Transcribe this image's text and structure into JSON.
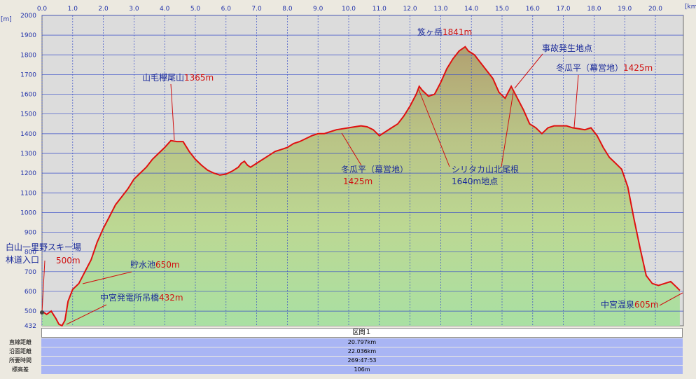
{
  "chart_data": {
    "type": "area",
    "x_unit": "[km]",
    "y_unit": "[m]",
    "xlim": [
      0,
      20.797
    ],
    "ylim": [
      432,
      2000
    ],
    "x_ticks": [
      "0.0",
      "1.0",
      "2.0",
      "3.0",
      "4.0",
      "5.0",
      "6.0",
      "7.0",
      "8.0",
      "9.0",
      "10.0",
      "11.0",
      "12.0",
      "13.0",
      "14.0",
      "15.0",
      "16.0",
      "17.0",
      "18.0",
      "19.0",
      "20.0"
    ],
    "y_ticks": [
      "2000",
      "1900",
      "1800",
      "1700",
      "1600",
      "1500",
      "1400",
      "1300",
      "1200",
      "1100",
      "1000",
      "900",
      "800",
      "700",
      "600",
      "500",
      "432"
    ],
    "grid": true,
    "line_color": "#e01010",
    "profile": [
      [
        0.0,
        500
      ],
      [
        0.15,
        490
      ],
      [
        0.3,
        500
      ],
      [
        0.45,
        470
      ],
      [
        0.55,
        440
      ],
      [
        0.65,
        432
      ],
      [
        0.75,
        460
      ],
      [
        0.85,
        550
      ],
      [
        1.0,
        610
      ],
      [
        1.2,
        640
      ],
      [
        1.4,
        700
      ],
      [
        1.6,
        760
      ],
      [
        1.8,
        850
      ],
      [
        2.0,
        920
      ],
      [
        2.2,
        980
      ],
      [
        2.4,
        1040
      ],
      [
        2.6,
        1080
      ],
      [
        2.8,
        1120
      ],
      [
        3.0,
        1170
      ],
      [
        3.2,
        1200
      ],
      [
        3.4,
        1230
      ],
      [
        3.6,
        1270
      ],
      [
        3.8,
        1300
      ],
      [
        4.0,
        1330
      ],
      [
        4.2,
        1365
      ],
      [
        4.4,
        1360
      ],
      [
        4.6,
        1360
      ],
      [
        4.8,
        1310
      ],
      [
        5.0,
        1270
      ],
      [
        5.2,
        1240
      ],
      [
        5.4,
        1215
      ],
      [
        5.6,
        1200
      ],
      [
        5.8,
        1190
      ],
      [
        6.0,
        1195
      ],
      [
        6.2,
        1210
      ],
      [
        6.4,
        1230
      ],
      [
        6.5,
        1250
      ],
      [
        6.6,
        1260
      ],
      [
        6.7,
        1240
      ],
      [
        6.8,
        1230
      ],
      [
        7.0,
        1250
      ],
      [
        7.2,
        1270
      ],
      [
        7.4,
        1290
      ],
      [
        7.6,
        1310
      ],
      [
        7.8,
        1320
      ],
      [
        8.0,
        1330
      ],
      [
        8.2,
        1350
      ],
      [
        8.4,
        1360
      ],
      [
        8.6,
        1375
      ],
      [
        8.8,
        1390
      ],
      [
        9.0,
        1400
      ],
      [
        9.2,
        1400
      ],
      [
        9.4,
        1410
      ],
      [
        9.6,
        1420
      ],
      [
        9.8,
        1425
      ],
      [
        10.0,
        1430
      ],
      [
        10.2,
        1435
      ],
      [
        10.4,
        1440
      ],
      [
        10.6,
        1435
      ],
      [
        10.8,
        1420
      ],
      [
        11.0,
        1390
      ],
      [
        11.2,
        1410
      ],
      [
        11.4,
        1430
      ],
      [
        11.6,
        1450
      ],
      [
        11.8,
        1490
      ],
      [
        12.0,
        1540
      ],
      [
        12.2,
        1600
      ],
      [
        12.3,
        1640
      ],
      [
        12.4,
        1620
      ],
      [
        12.6,
        1590
      ],
      [
        12.8,
        1600
      ],
      [
        13.0,
        1660
      ],
      [
        13.2,
        1730
      ],
      [
        13.4,
        1780
      ],
      [
        13.6,
        1820
      ],
      [
        13.8,
        1841
      ],
      [
        13.9,
        1820
      ],
      [
        14.1,
        1800
      ],
      [
        14.3,
        1760
      ],
      [
        14.5,
        1720
      ],
      [
        14.7,
        1680
      ],
      [
        14.9,
        1610
      ],
      [
        15.1,
        1580
      ],
      [
        15.3,
        1640
      ],
      [
        15.5,
        1580
      ],
      [
        15.7,
        1520
      ],
      [
        15.9,
        1450
      ],
      [
        16.1,
        1430
      ],
      [
        16.3,
        1400
      ],
      [
        16.5,
        1430
      ],
      [
        16.7,
        1440
      ],
      [
        16.9,
        1440
      ],
      [
        17.1,
        1440
      ],
      [
        17.3,
        1430
      ],
      [
        17.5,
        1425
      ],
      [
        17.7,
        1420
      ],
      [
        17.9,
        1430
      ],
      [
        18.1,
        1390
      ],
      [
        18.3,
        1330
      ],
      [
        18.5,
        1280
      ],
      [
        18.7,
        1250
      ],
      [
        18.9,
        1220
      ],
      [
        19.1,
        1130
      ],
      [
        19.3,
        970
      ],
      [
        19.5,
        820
      ],
      [
        19.7,
        680
      ],
      [
        19.9,
        640
      ],
      [
        20.1,
        630
      ],
      [
        20.3,
        640
      ],
      [
        20.5,
        650
      ],
      [
        20.7,
        620
      ],
      [
        20.797,
        605
      ]
    ],
    "annotations": [
      {
        "name": "白山一里野スキー場",
        "name2": "林道入口",
        "elev": "500m"
      },
      {
        "name": "貯水池",
        "elev": "650m"
      },
      {
        "name": "中宮発電所吊橋",
        "elev": "432m"
      },
      {
        "name": "山毛欅尾山",
        "elev": "1365m"
      },
      {
        "name": "冬瓜平（幕営地）",
        "elev": "1425m"
      },
      {
        "name": "シリタカ山北尾根",
        "name2": "1640m地点"
      },
      {
        "name": "笈ヶ岳",
        "elev": "1841m"
      },
      {
        "name": "事故発生地点"
      },
      {
        "name": "冬瓜平（幕営地）",
        "elev": "1425m"
      },
      {
        "name": "中宮温泉",
        "elev": "605m"
      }
    ]
  },
  "stats": {
    "header": "区間１",
    "rows": [
      {
        "label": "直線距離",
        "value": "20.797km"
      },
      {
        "label": "沿面距離",
        "value": "22.036km"
      },
      {
        "label": "所要時間",
        "value": "269:47:53"
      },
      {
        "label": "標高差",
        "value": "106m"
      }
    ]
  }
}
